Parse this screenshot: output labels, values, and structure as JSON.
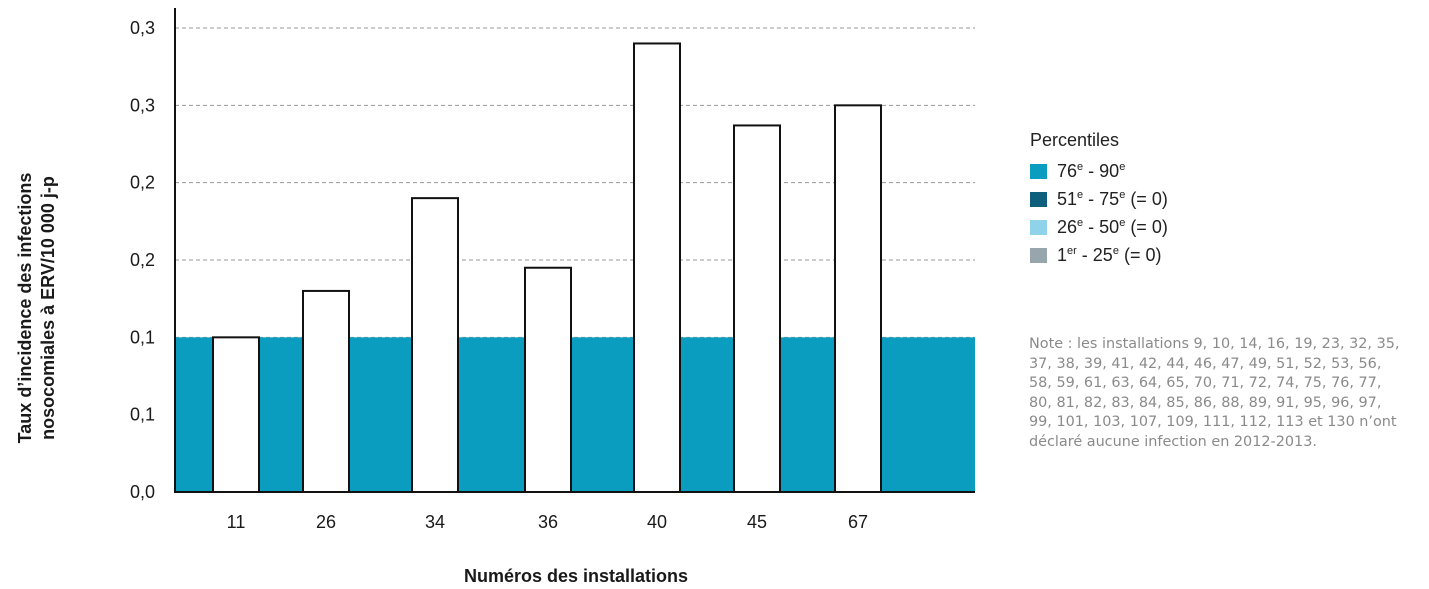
{
  "chart_data": {
    "type": "bar",
    "categories": [
      "11",
      "26",
      "34",
      "36",
      "40",
      "45",
      "67"
    ],
    "values": [
      0.1,
      0.13,
      0.19,
      0.145,
      0.29,
      0.237,
      0.25
    ],
    "xlabel": "Numéros des installations",
    "ylabel_lines": [
      "Taux d’incidence des infections",
      "nosocomiales à ERV/10 000 j-p"
    ],
    "ylim": [
      0,
      0.3
    ],
    "yticks": [
      0,
      0.05,
      0.1,
      0.15,
      0.2,
      0.25,
      0.3
    ],
    "ytick_labels": [
      "0,0",
      "0,1",
      "0,1",
      "0,2",
      "0,2",
      "0,3",
      "0,3"
    ],
    "grid": true,
    "percentile_band": {
      "from": 0,
      "to": 0.1,
      "label": "76e - 90e",
      "color": "#0b9dc0"
    },
    "bar_fill": "#ffffff",
    "bar_stroke": "#111111"
  },
  "legend": {
    "title": "Percentiles",
    "position": "right",
    "items": [
      {
        "num1": "76",
        "sup1": "e",
        "sep": " - ",
        "num2": "90",
        "sup2": "e",
        "suffix": "",
        "color": "#0b9dc0"
      },
      {
        "num1": "51",
        "sup1": "e",
        "sep": " - ",
        "num2": "75",
        "sup2": "e",
        "suffix": " (= 0)",
        "color": "#0d5f7c"
      },
      {
        "num1": "26",
        "sup1": "e",
        "sep": " - ",
        "num2": "50",
        "sup2": "e",
        "suffix": " (= 0)",
        "color": "#8fd3ea"
      },
      {
        "num1": "1",
        "sup1": "er",
        "sep": " - ",
        "num2": "25",
        "sup2": "e",
        "suffix": " (= 0)",
        "color": "#97a6ad"
      }
    ]
  },
  "note": "Note : les installations 9, 10, 14, 16, 19, 23, 32, 35, 37, 38, 39, 41, 42, 44, 46, 47, 49, 51, 52, 53, 56, 58, 59, 61, 63, 64, 65, 70, 71, 72, 74, 75, 76, 77, 80, 81, 82, 83, 84, 85, 86, 88, 89, 91, 95, 96, 97, 99, 101, 103, 107, 109, 111, 112, 113 et 130 n’ont déclaré aucune infection en 2012-2013."
}
